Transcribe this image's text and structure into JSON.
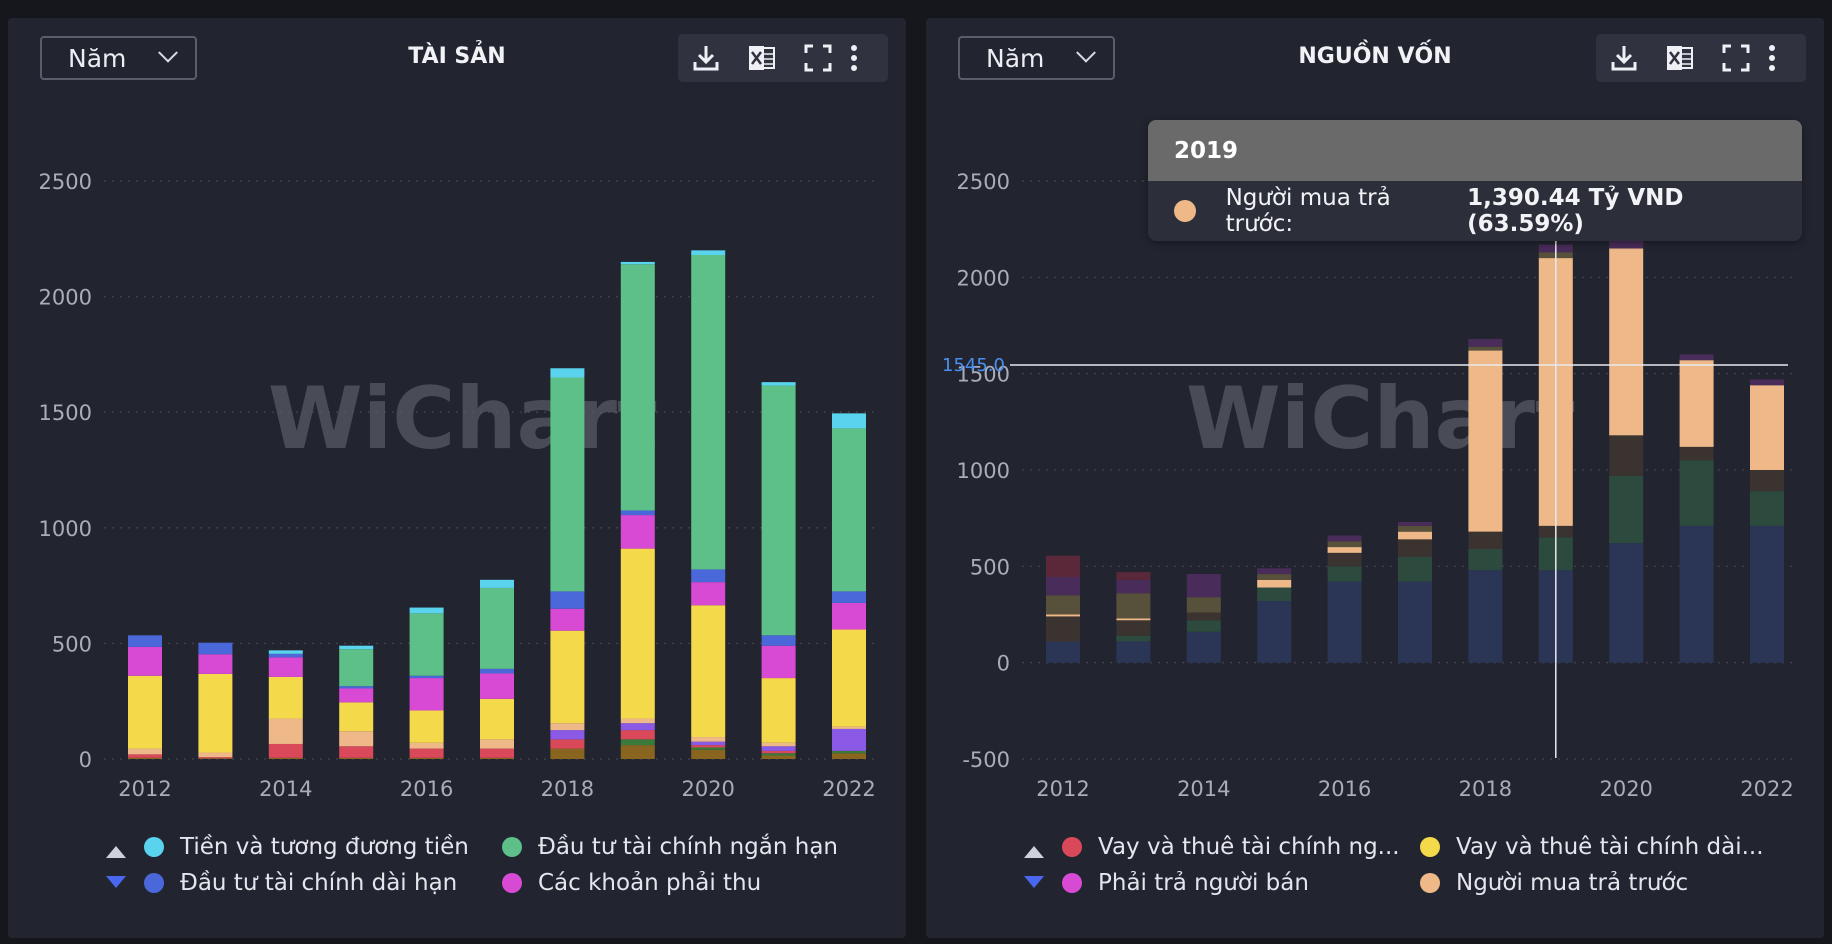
{
  "panels": [
    {
      "title": "TÀI SẢN",
      "period": "Năm",
      "legend": [
        "Tiền và tương đương tiền",
        "Đầu tư tài chính ngắn hạn",
        "Đầu tư tài chính dài hạn",
        "Các khoản phải thu"
      ]
    },
    {
      "title": "NGUỒN VỐN",
      "period": "Năm",
      "legend": [
        "Vay và thuê tài chính ng...",
        "Vay và thuê tài chính dài...",
        "Phải trả người bán",
        "Người mua trả trước"
      ]
    }
  ],
  "watermark": "WiChart",
  "icons": [
    "download-icon",
    "excel-icon",
    "fullscreen-icon",
    "more-icon",
    "chevron-down-icon",
    "legend-up-arrow-icon",
    "legend-down-arrow-icon"
  ],
  "tooltip": {
    "year": "2019",
    "label": "Người mua trả trước:",
    "value": "1,390.44 Tỷ VND (63.59%)"
  },
  "crosshair_label": "1545.0",
  "chart_data": [
    {
      "type": "bar",
      "stacked": true,
      "title": "TÀI SẢN",
      "x": [
        2012,
        2013,
        2014,
        2015,
        2016,
        2017,
        2018,
        2019,
        2020,
        2021,
        2022
      ],
      "x_tick_labels": [
        "2012",
        "2014",
        "2016",
        "2018",
        "2020",
        "2022"
      ],
      "y_tick_labels": [
        "0",
        "500",
        "1000",
        "1500",
        "2000",
        "2500"
      ],
      "ylim": [
        0,
        2500
      ],
      "grid": true,
      "series": [
        {
          "key": "s_brown",
          "color": "#8a6520",
          "values": [
            5,
            3,
            5,
            5,
            5,
            5,
            45,
            60,
            40,
            15,
            25
          ]
        },
        {
          "key": "s_green_dark",
          "color": "#3a7a3a",
          "values": [
            0,
            0,
            0,
            0,
            0,
            0,
            0,
            25,
            10,
            10,
            10
          ]
        },
        {
          "key": "s_red",
          "color": "#d9495a",
          "values": [
            15,
            5,
            60,
            50,
            40,
            40,
            40,
            40,
            10,
            10,
            0
          ]
        },
        {
          "key": "s_purple",
          "color": "#8a5ae6",
          "values": [
            0,
            0,
            0,
            0,
            0,
            0,
            40,
            30,
            15,
            20,
            95
          ]
        },
        {
          "key": "s_peach",
          "color": "#eeb888",
          "values": [
            25,
            20,
            110,
            65,
            25,
            40,
            30,
            20,
            20,
            15,
            10
          ]
        },
        {
          "key": "s_yellow",
          "color": "#f4d94a",
          "values": [
            315,
            340,
            180,
            125,
            140,
            175,
            400,
            735,
            570,
            280,
            420
          ]
        },
        {
          "key": "s_magenta",
          "color": "#d94ad4",
          "values": [
            125,
            85,
            85,
            60,
            140,
            110,
            95,
            145,
            100,
            140,
            115
          ]
        },
        {
          "key": "s_blue",
          "color": "#4a68d9",
          "values": [
            50,
            50,
            15,
            10,
            10,
            20,
            75,
            20,
            55,
            45,
            50
          ]
        },
        {
          "key": "s_green",
          "color": "#5cc088",
          "values": [
            0,
            0,
            0,
            160,
            270,
            350,
            925,
            1065,
            1360,
            1080,
            705
          ]
        },
        {
          "key": "s_cyan",
          "color": "#5ad4ee",
          "values": [
            0,
            0,
            15,
            15,
            25,
            35,
            40,
            10,
            20,
            15,
            65
          ]
        }
      ]
    },
    {
      "type": "bar",
      "stacked": true,
      "title": "NGUỒN VỐN",
      "x": [
        2012,
        2013,
        2014,
        2015,
        2016,
        2017,
        2018,
        2019,
        2020,
        2021,
        2022
      ],
      "x_tick_labels": [
        "2012",
        "2014",
        "2016",
        "2018",
        "2020",
        "2022"
      ],
      "y_tick_labels": [
        "-500",
        "0",
        "500",
        "1000",
        "1500",
        "2000",
        "2500"
      ],
      "ylim": [
        -500,
        2500
      ],
      "grid": true,
      "series": [
        {
          "key": "n_navy",
          "color": "#2b3556",
          "values": [
            110,
            110,
            160,
            320,
            420,
            420,
            480,
            480,
            620,
            710,
            710
          ]
        },
        {
          "key": "n_green",
          "color": "#2c4a3e",
          "values": [
            0,
            30,
            60,
            70,
            80,
            130,
            110,
            170,
            350,
            340,
            180
          ]
        },
        {
          "key": "n_dark",
          "color": "#3a3330",
          "values": [
            130,
            80,
            40,
            0,
            70,
            90,
            90,
            60,
            210,
            70,
            110
          ]
        },
        {
          "key": "n_peach",
          "color": "#eeb888",
          "values": [
            10,
            10,
            0,
            40,
            30,
            40,
            940,
            1390,
            970,
            450,
            440
          ]
        },
        {
          "key": "n_olive",
          "color": "#57503a",
          "values": [
            100,
            130,
            80,
            30,
            30,
            30,
            20,
            30,
            0,
            0,
            0
          ]
        },
        {
          "key": "n_plum",
          "color": "#4a2c5a",
          "values": [
            95,
            70,
            120,
            30,
            30,
            20,
            40,
            40,
            40,
            30,
            30
          ]
        },
        {
          "key": "n_maroon",
          "color": "#5a2838",
          "values": [
            110,
            40,
            0,
            0,
            0,
            0,
            0,
            0,
            0,
            0,
            0
          ]
        }
      ]
    }
  ]
}
